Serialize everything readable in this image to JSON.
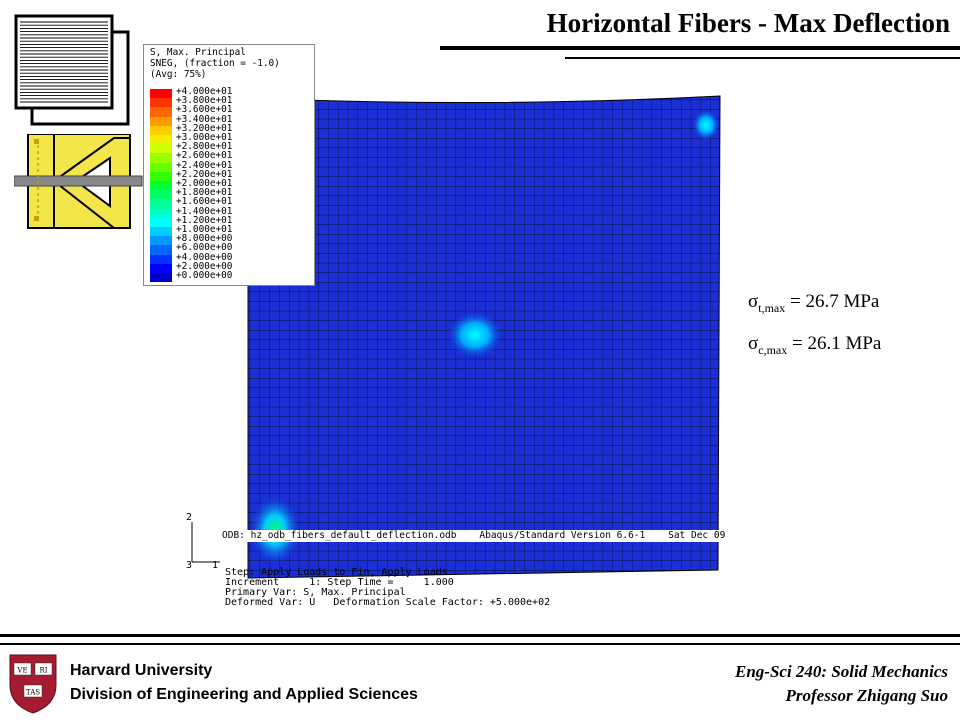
{
  "title": "Horizontal Fibers -  Max Deflection",
  "legend": {
    "title_lines": [
      "S, Max. Principal",
      "SNEG, (fraction = -1.0)",
      "(Avg: 75%)"
    ],
    "entries": [
      {
        "label": "+4.000e+01",
        "color": "#ff0000"
      },
      {
        "label": "+3.800e+01",
        "color": "#ff3300"
      },
      {
        "label": "+3.600e+01",
        "color": "#ff6600"
      },
      {
        "label": "+3.400e+01",
        "color": "#ff9900"
      },
      {
        "label": "+3.200e+01",
        "color": "#ffcc00"
      },
      {
        "label": "+3.000e+01",
        "color": "#eeee00"
      },
      {
        "label": "+2.800e+01",
        "color": "#ccff00"
      },
      {
        "label": "+2.600e+01",
        "color": "#99ff00"
      },
      {
        "label": "+2.400e+01",
        "color": "#66ff00"
      },
      {
        "label": "+2.200e+01",
        "color": "#33ff00"
      },
      {
        "label": "+2.000e+01",
        "color": "#00ff33"
      },
      {
        "label": "+1.800e+01",
        "color": "#00ff66"
      },
      {
        "label": "+1.600e+01",
        "color": "#00ff99"
      },
      {
        "label": "+1.400e+01",
        "color": "#00ffcc"
      },
      {
        "label": "+1.200e+01",
        "color": "#00ffff"
      },
      {
        "label": "+1.000e+01",
        "color": "#00ccff"
      },
      {
        "label": "+8.000e+00",
        "color": "#0099ff"
      },
      {
        "label": "+6.000e+00",
        "color": "#0066ff"
      },
      {
        "label": "+4.000e+00",
        "color": "#0033ff"
      },
      {
        "label": "+2.000e+00",
        "color": "#0000ff"
      },
      {
        "label": "+0.000e+00",
        "color": "#0000cc"
      }
    ],
    "last_label": "+0.000e+00"
  },
  "stress": {
    "tension_symbol": "σ",
    "tension_sub": "t,max",
    "tension_value": "= 26.7 MPa",
    "compression_symbol": "σ",
    "compression_sub": "c,max",
    "compression_value": "= 26.1 MPa"
  },
  "odb_line": "ODB: hz_odb_fibers_default_deflection.odb    Abaqus/Standard Version 6.6-1    Sat Dec 09",
  "info_lines": [
    "Step: Apply Loads to Fin, Apply Loads",
    "Increment     1: Step Time =     1.000",
    "Primary Var: S, Max. Principal",
    "Deformed Var: U   Deformation Scale Factor: +5.000e+02"
  ],
  "axes": {
    "y_label": "2",
    "z_label": "3",
    "x_label": "1"
  },
  "footer": {
    "university": "Harvard University",
    "division": "Division of Engineering and Applied Sciences",
    "course": "Eng-Sci 240: Solid Mechanics",
    "professor": "Professor Zhigang Suo"
  },
  "shield_text": [
    "VE",
    "RI",
    "TAS"
  ],
  "colors": {
    "mesh_blue": "#1a2fd6",
    "shield_crimson": "#a51c30",
    "icon_yellow": "#f2e64a",
    "icon_gray": "#888888"
  }
}
